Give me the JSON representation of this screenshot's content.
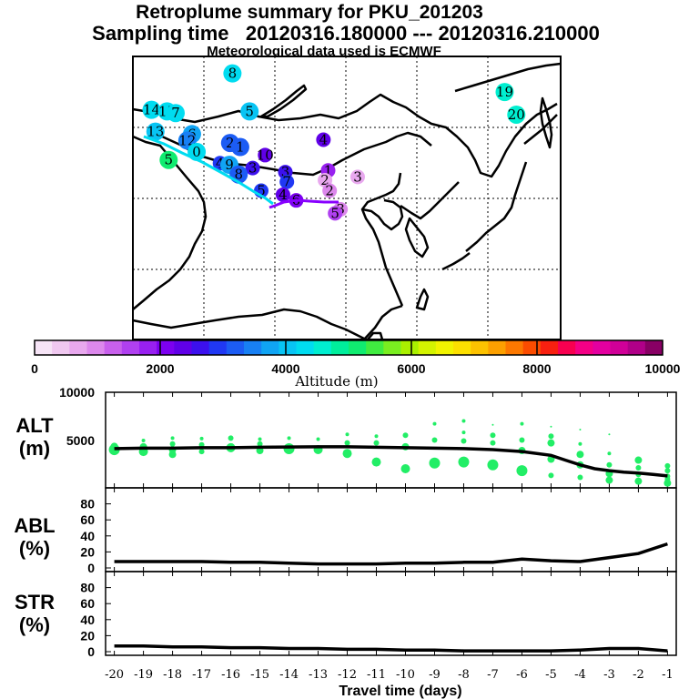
{
  "header": {
    "title": "Retroplume summary for PKU_201203",
    "sampling": "Sampling time   20120316.180000 --- 20120316.210000",
    "met": "Meteorological data used is ECMWF"
  },
  "colorbar": {
    "label": "Altitude (m)",
    "range": [
      0,
      10000
    ],
    "ticks": [
      "0",
      "2000",
      "4000",
      "6000",
      "8000",
      "10000"
    ],
    "colors": [
      "#f6e4f6",
      "#f0c8f0",
      "#e8a8ee",
      "#dc88ec",
      "#c860ec",
      "#b040f0",
      "#9820f0",
      "#7c00f0",
      "#6000e8",
      "#3c10ee",
      "#2038f4",
      "#1c5cf4",
      "#1880f4",
      "#10a4f4",
      "#08c4f4",
      "#00dcf0",
      "#00eed0",
      "#00ee9c",
      "#10ec70",
      "#40ec40",
      "#7aee20",
      "#aaf000",
      "#d4f400",
      "#f2f400",
      "#fde000",
      "#fdc200",
      "#fca000",
      "#fc7800",
      "#fb4c00",
      "#f82010",
      "#f80050",
      "#f40086",
      "#e400a0",
      "#d00098",
      "#b00088",
      "#880064"
    ]
  },
  "map": {
    "markers": [
      {
        "label": "8",
        "lon": 97.8,
        "lat": 52.9,
        "alt": 4400
      },
      {
        "label": "14",
        "lon": 87.4,
        "lat": 48.4,
        "alt": 4200
      },
      {
        "label": "15",
        "lon": 89.4,
        "lat": 48.2,
        "alt": 4300
      },
      {
        "label": "7",
        "lon": 90.5,
        "lat": 48.0,
        "alt": 4200
      },
      {
        "label": "5",
        "lon": 100.0,
        "lat": 48.2,
        "alt": 4000
      },
      {
        "label": "13",
        "lon": 87.9,
        "lat": 45.7,
        "alt": 4000
      },
      {
        "label": "6",
        "lon": 92.6,
        "lat": 45.4,
        "alt": 3700
      },
      {
        "label": "12",
        "lon": 92.0,
        "lat": 44.6,
        "alt": 3600
      },
      {
        "label": "0",
        "lon": 93.2,
        "lat": 43.2,
        "alt": 4200
      },
      {
        "label": "5",
        "lon": 89.6,
        "lat": 42.2,
        "alt": 5100
      },
      {
        "label": "2",
        "lon": 97.5,
        "lat": 44.3,
        "alt": 3300
      },
      {
        "label": "1",
        "lon": 98.8,
        "lat": 43.8,
        "alt": 3100
      },
      {
        "label": "10",
        "lon": 102.0,
        "lat": 42.8,
        "alt": 2300
      },
      {
        "label": "4",
        "lon": 96.2,
        "lat": 41.8,
        "alt": 3000
      },
      {
        "label": "9",
        "lon": 97.4,
        "lat": 41.6,
        "alt": 3800
      },
      {
        "label": "3",
        "lon": 100.4,
        "lat": 41.2,
        "alt": 2600
      },
      {
        "label": "8",
        "lon": 98.6,
        "lat": 40.4,
        "alt": 3100
      },
      {
        "label": "3",
        "lon": 104.6,
        "lat": 40.7,
        "alt": 2600
      },
      {
        "label": "7",
        "lon": 104.8,
        "lat": 39.5,
        "alt": 2900
      },
      {
        "label": "5",
        "lon": 101.5,
        "lat": 38.4,
        "alt": 2900
      },
      {
        "label": "4",
        "lon": 104.3,
        "lat": 37.9,
        "alt": 2400
      },
      {
        "label": "6",
        "lon": 106.0,
        "lat": 37.2,
        "alt": 2100
      },
      {
        "label": "1",
        "lon": 110.1,
        "lat": 40.9,
        "alt": 1800
      },
      {
        "label": "2",
        "lon": 109.7,
        "lat": 39.7,
        "alt": 700
      },
      {
        "label": "2",
        "lon": 110.3,
        "lat": 38.4,
        "alt": 1100
      },
      {
        "label": "3",
        "lon": 113.9,
        "lat": 40.1,
        "alt": 600
      },
      {
        "label": "3",
        "lon": 111.7,
        "lat": 36.1,
        "alt": 1000
      },
      {
        "label": "5",
        "lon": 111.0,
        "lat": 35.6,
        "alt": 1400
      },
      {
        "label": "4",
        "lon": 109.5,
        "lat": 44.7,
        "alt": 2300
      },
      {
        "label": "19",
        "lon": 132.8,
        "lat": 50.6,
        "alt": 4700
      },
      {
        "label": "20",
        "lon": 134.3,
        "lat": 47.8,
        "alt": 4700
      }
    ]
  },
  "chart_data": [
    {
      "type": "scatter",
      "panel": "ALT (m)",
      "title": "ALT",
      "unit": "(m)",
      "ylim": [
        0,
        10000
      ],
      "yticks": [
        "10000",
        "5000"
      ],
      "xlim": [
        -20.3,
        -0.7
      ],
      "x_ticks": [
        "-20",
        "-19",
        "-18",
        "-17",
        "-16",
        "-15",
        "-14",
        "-13",
        "-12",
        "-11",
        "-10",
        "-9",
        "-8",
        "-7",
        "-6",
        "-5",
        "-4",
        "-3",
        "-2",
        "-1"
      ],
      "xlabel": "Travel time (days)",
      "mean_line": {
        "x": [
          -20,
          -19,
          -18,
          -17,
          -16,
          -15,
          -14,
          -13,
          -12,
          -11,
          -10,
          -9,
          -8,
          -7,
          -6,
          -5,
          -4.5,
          -4,
          -3.5,
          -3,
          -2.5,
          -2,
          -1.5,
          -1
        ],
        "y": [
          4100,
          4150,
          4150,
          4200,
          4200,
          4250,
          4280,
          4300,
          4300,
          4250,
          4200,
          4150,
          4100,
          4000,
          3800,
          3400,
          2900,
          2400,
          2000,
          1800,
          1650,
          1550,
          1400,
          1250
        ]
      },
      "points": [
        {
          "x": -20,
          "y": 4000,
          "s": 6
        },
        {
          "x": -20,
          "y": 4350,
          "s": 4
        },
        {
          "x": -20,
          "y": 3700,
          "s": 3
        },
        {
          "x": -19,
          "y": 4950,
          "s": 2
        },
        {
          "x": -19,
          "y": 4300,
          "s": 4
        },
        {
          "x": -19,
          "y": 3800,
          "s": 5
        },
        {
          "x": -18,
          "y": 5200,
          "s": 2
        },
        {
          "x": -18,
          "y": 4600,
          "s": 3
        },
        {
          "x": -18,
          "y": 4000,
          "s": 4
        },
        {
          "x": -18,
          "y": 3500,
          "s": 4
        },
        {
          "x": -17,
          "y": 5150,
          "s": 2
        },
        {
          "x": -17,
          "y": 4500,
          "s": 3
        },
        {
          "x": -17,
          "y": 3800,
          "s": 3
        },
        {
          "x": -16,
          "y": 5200,
          "s": 3
        },
        {
          "x": -16,
          "y": 4200,
          "s": 5
        },
        {
          "x": -15,
          "y": 5100,
          "s": 2
        },
        {
          "x": -15,
          "y": 4600,
          "s": 3
        },
        {
          "x": -15,
          "y": 3900,
          "s": 4
        },
        {
          "x": -14,
          "y": 5200,
          "s": 2
        },
        {
          "x": -14,
          "y": 4100,
          "s": 6
        },
        {
          "x": -13,
          "y": 5100,
          "s": 2
        },
        {
          "x": -13,
          "y": 4000,
          "s": 5
        },
        {
          "x": -12,
          "y": 5600,
          "s": 2
        },
        {
          "x": -12,
          "y": 4700,
          "s": 3
        },
        {
          "x": -12,
          "y": 3600,
          "s": 5
        },
        {
          "x": -11,
          "y": 5400,
          "s": 2
        },
        {
          "x": -11,
          "y": 4700,
          "s": 3
        },
        {
          "x": -11,
          "y": 2700,
          "s": 5
        },
        {
          "x": -10,
          "y": 5500,
          "s": 3
        },
        {
          "x": -10,
          "y": 4300,
          "s": 4
        },
        {
          "x": -10,
          "y": 2000,
          "s": 5
        },
        {
          "x": -9,
          "y": 6700,
          "s": 2
        },
        {
          "x": -9,
          "y": 5000,
          "s": 3
        },
        {
          "x": -9,
          "y": 2600,
          "s": 6
        },
        {
          "x": -8,
          "y": 7000,
          "s": 2
        },
        {
          "x": -8,
          "y": 5800,
          "s": 2
        },
        {
          "x": -8,
          "y": 4900,
          "s": 3
        },
        {
          "x": -8,
          "y": 2700,
          "s": 6
        },
        {
          "x": -7,
          "y": 6600,
          "s": 1
        },
        {
          "x": -7,
          "y": 5500,
          "s": 3
        },
        {
          "x": -7,
          "y": 4700,
          "s": 3
        },
        {
          "x": -7,
          "y": 2400,
          "s": 6
        },
        {
          "x": -6,
          "y": 6700,
          "s": 2
        },
        {
          "x": -6,
          "y": 5000,
          "s": 3
        },
        {
          "x": -6,
          "y": 3900,
          "s": 4
        },
        {
          "x": -6,
          "y": 1800,
          "s": 6
        },
        {
          "x": -5,
          "y": 6400,
          "s": 1
        },
        {
          "x": -5,
          "y": 5400,
          "s": 3
        },
        {
          "x": -5,
          "y": 4700,
          "s": 4
        },
        {
          "x": -5,
          "y": 3000,
          "s": 4
        },
        {
          "x": -5,
          "y": 1300,
          "s": 3
        },
        {
          "x": -4,
          "y": 6100,
          "s": 1
        },
        {
          "x": -4,
          "y": 4600,
          "s": 2
        },
        {
          "x": -4,
          "y": 3500,
          "s": 4
        },
        {
          "x": -4,
          "y": 2400,
          "s": 4
        },
        {
          "x": -4,
          "y": 1100,
          "s": 3
        },
        {
          "x": -3,
          "y": 5600,
          "s": 1
        },
        {
          "x": -3,
          "y": 3600,
          "s": 2
        },
        {
          "x": -3,
          "y": 2400,
          "s": 3
        },
        {
          "x": -3,
          "y": 1500,
          "s": 4
        },
        {
          "x": -3,
          "y": 800,
          "s": 4
        },
        {
          "x": -2,
          "y": 2900,
          "s": 4
        },
        {
          "x": -2,
          "y": 2100,
          "s": 3
        },
        {
          "x": -2,
          "y": 1400,
          "s": 3
        },
        {
          "x": -2,
          "y": 700,
          "s": 4
        },
        {
          "x": -1,
          "y": 2300,
          "s": 3
        },
        {
          "x": -1,
          "y": 1800,
          "s": 3
        },
        {
          "x": -1,
          "y": 1200,
          "s": 3
        },
        {
          "x": -1,
          "y": 900,
          "s": 3
        },
        {
          "x": -1,
          "y": 500,
          "s": 4
        }
      ]
    },
    {
      "type": "line",
      "panel": "ABL (%)",
      "title": "ABL",
      "unit": "(%)",
      "ylim": [
        0,
        100
      ],
      "yticks": [
        "0",
        "20",
        "40",
        "60",
        "80"
      ],
      "x": [
        -20,
        -19,
        -18,
        -17,
        -16,
        -15,
        -14,
        -13,
        -12,
        -11,
        -10,
        -9,
        -8,
        -7,
        -6,
        -5,
        -4,
        -3,
        -2,
        -1
      ],
      "y": [
        8,
        8,
        8,
        8,
        7,
        7,
        6,
        5,
        5,
        5,
        6,
        6,
        7,
        7,
        11,
        9,
        8,
        13,
        18,
        30
      ]
    },
    {
      "type": "line",
      "panel": "STR (%)",
      "title": "STR",
      "unit": "(%)",
      "ylim": [
        0,
        100
      ],
      "yticks": [
        "0",
        "20",
        "40",
        "60",
        "80"
      ],
      "x": [
        -20,
        -19,
        -18,
        -17,
        -16,
        -15,
        -14,
        -13,
        -12,
        -11,
        -10,
        -9,
        -8,
        -7,
        -6,
        -5,
        -4,
        -3,
        -2,
        -1
      ],
      "y": [
        7,
        7,
        6,
        6,
        5,
        5,
        4,
        4,
        3,
        3,
        2,
        2,
        1,
        1,
        1,
        1,
        2,
        4,
        4,
        1
      ]
    }
  ]
}
